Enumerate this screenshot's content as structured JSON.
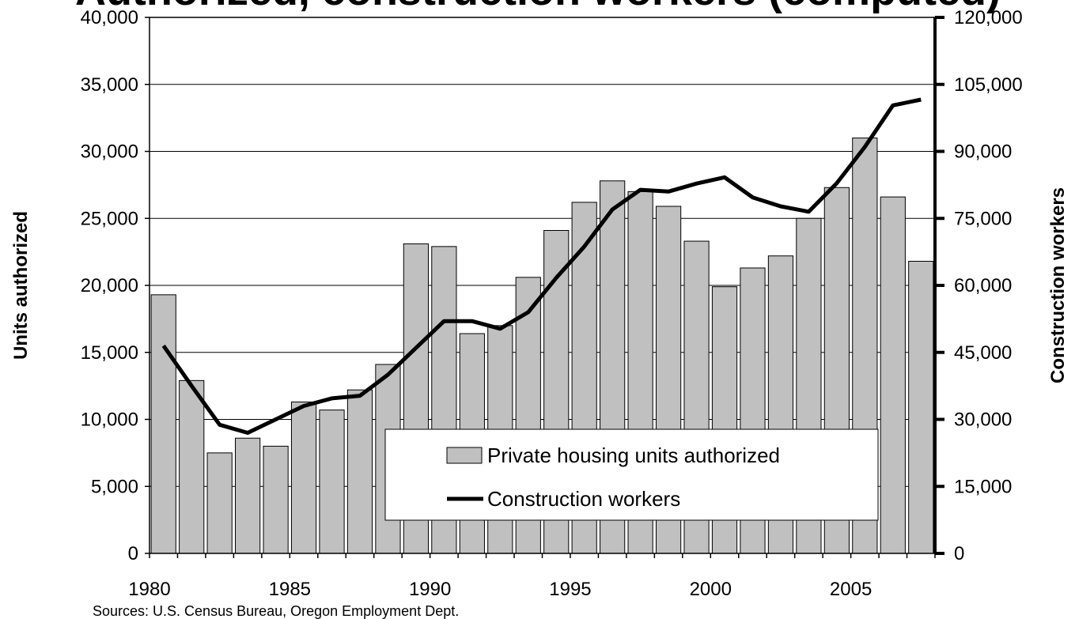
{
  "chart_data": {
    "type": "bar",
    "title": "Authorized, construction workers (computed)",
    "x": [
      1980,
      1981,
      1982,
      1983,
      1984,
      1985,
      1986,
      1987,
      1988,
      1989,
      1990,
      1991,
      1992,
      1993,
      1994,
      1995,
      1996,
      1997,
      1998,
      1999,
      2000,
      2001,
      2002,
      2003,
      2004,
      2005,
      2006,
      2007
    ],
    "x_tick_labels": [
      "1980",
      "1985",
      "1990",
      "1995",
      "2000",
      "2005"
    ],
    "y_left_label": "Units authorized",
    "y_right_label": "Construction workers",
    "y_left_ticks": [
      "0",
      "5,000",
      "10,000",
      "15,000",
      "20,000",
      "25,000",
      "30,000",
      "35,000",
      "40,000"
    ],
    "y_right_ticks": [
      "0",
      "15,000",
      "30,000",
      "45,000",
      "60,000",
      "75,000",
      "90,000",
      "105,000",
      "120,000"
    ],
    "ylim_left": [
      0,
      40000
    ],
    "ylim_right": [
      0,
      120000
    ],
    "grid": true,
    "legend_position": "lower-right",
    "series": [
      {
        "name": "Private housing units authorized",
        "type": "bar",
        "axis": "left",
        "color": "#c0c0c0",
        "values": [
          19300,
          12900,
          7500,
          8600,
          8000,
          11300,
          10700,
          12200,
          14100,
          23100,
          22900,
          16400,
          17000,
          20600,
          24100,
          26200,
          27800,
          27000,
          25900,
          23300,
          19900,
          21300,
          22200,
          25000,
          27300,
          31000,
          26600,
          21800
        ]
      },
      {
        "name": "Construction workers",
        "type": "line",
        "axis": "right",
        "color": "#000000",
        "values": [
          46500,
          37500,
          28800,
          27000,
          30000,
          33000,
          34700,
          35300,
          40000,
          46000,
          52000,
          52000,
          50300,
          54000,
          61700,
          68700,
          77000,
          81400,
          81000,
          82800,
          84200,
          79700,
          77700,
          76500,
          82900,
          91000,
          100300,
          101600
        ]
      }
    ],
    "source_note": "Sources: U.S. Census Bureau, Oregon Employment Dept."
  }
}
